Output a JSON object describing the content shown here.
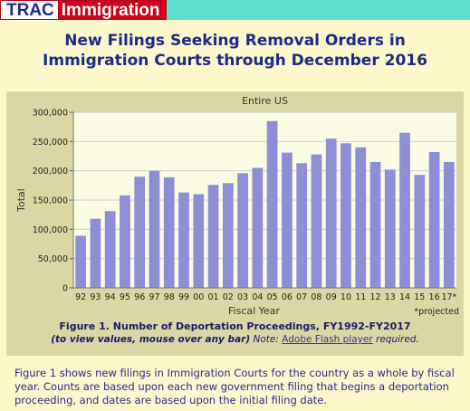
{
  "logo": {
    "part1": "TRAC",
    "part2": "Immigration"
  },
  "title_line1": "New Filings Seeking Removal Orders in",
  "title_line2": "Immigration Courts through December 2016",
  "chart_data": {
    "type": "bar",
    "title": "Entire US",
    "xlabel": "Fiscal Year",
    "ylabel": "Total",
    "ylim": [
      0,
      300000
    ],
    "yticks": [
      0,
      50000,
      100000,
      150000,
      200000,
      250000,
      300000
    ],
    "ytick_labels": [
      "0",
      "50,000",
      "100,000",
      "150,000",
      "200,000",
      "250,000",
      "300,000"
    ],
    "categories": [
      "92",
      "93",
      "94",
      "95",
      "96",
      "97",
      "98",
      "99",
      "00",
      "01",
      "02",
      "03",
      "04",
      "05",
      "06",
      "07",
      "08",
      "09",
      "10",
      "11",
      "12",
      "13",
      "14",
      "15",
      "16",
      "17*"
    ],
    "values": [
      89000,
      118000,
      131000,
      158000,
      190000,
      200000,
      189000,
      163000,
      160000,
      176000,
      179000,
      196000,
      205000,
      285000,
      231000,
      213000,
      228000,
      255000,
      247000,
      240000,
      215000,
      202000,
      265000,
      193000,
      232000,
      215000
    ],
    "bar_color": "#8e8ed6",
    "plot_bg": "#fcfbe4",
    "grid": true,
    "footnote": "*projected"
  },
  "caption": {
    "title": "Figure 1. Number of Deportation Proceedings, FY1992-FY2017",
    "note_bold": "(to view values, mouse over any bar)",
    "note_label": "Note:",
    "note_link": "Adobe Flash player",
    "note_end": "required."
  },
  "description": "Figure 1 shows new filings in Immigration Courts for the country as a whole by fiscal year. Counts are based upon each new government filing that begins a deportation proceeding, and dates are based upon the initial filing date."
}
